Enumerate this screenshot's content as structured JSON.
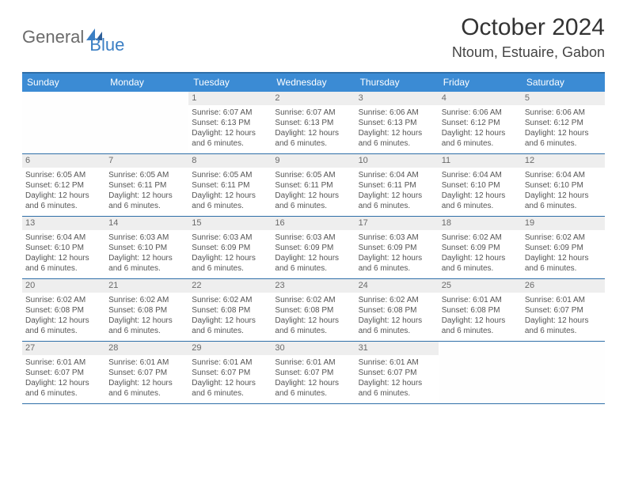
{
  "logo": {
    "text1": "General",
    "text2": "Blue"
  },
  "title": "October 2024",
  "location": "Ntoum, Estuaire, Gabon",
  "colors": {
    "header_bar": "#3b8bd4",
    "border": "#2f6fa8",
    "daynum_bg": "#eeeeee",
    "logo_gray": "#6b6b6b",
    "logo_blue": "#3b7fc4"
  },
  "day_names": [
    "Sunday",
    "Monday",
    "Tuesday",
    "Wednesday",
    "Thursday",
    "Friday",
    "Saturday"
  ],
  "weeks": [
    [
      null,
      null,
      {
        "n": "1",
        "sr": "6:07 AM",
        "ss": "6:13 PM",
        "dl": "12 hours and 6 minutes."
      },
      {
        "n": "2",
        "sr": "6:07 AM",
        "ss": "6:13 PM",
        "dl": "12 hours and 6 minutes."
      },
      {
        "n": "3",
        "sr": "6:06 AM",
        "ss": "6:13 PM",
        "dl": "12 hours and 6 minutes."
      },
      {
        "n": "4",
        "sr": "6:06 AM",
        "ss": "6:12 PM",
        "dl": "12 hours and 6 minutes."
      },
      {
        "n": "5",
        "sr": "6:06 AM",
        "ss": "6:12 PM",
        "dl": "12 hours and 6 minutes."
      }
    ],
    [
      {
        "n": "6",
        "sr": "6:05 AM",
        "ss": "6:12 PM",
        "dl": "12 hours and 6 minutes."
      },
      {
        "n": "7",
        "sr": "6:05 AM",
        "ss": "6:11 PM",
        "dl": "12 hours and 6 minutes."
      },
      {
        "n": "8",
        "sr": "6:05 AM",
        "ss": "6:11 PM",
        "dl": "12 hours and 6 minutes."
      },
      {
        "n": "9",
        "sr": "6:05 AM",
        "ss": "6:11 PM",
        "dl": "12 hours and 6 minutes."
      },
      {
        "n": "10",
        "sr": "6:04 AM",
        "ss": "6:11 PM",
        "dl": "12 hours and 6 minutes."
      },
      {
        "n": "11",
        "sr": "6:04 AM",
        "ss": "6:10 PM",
        "dl": "12 hours and 6 minutes."
      },
      {
        "n": "12",
        "sr": "6:04 AM",
        "ss": "6:10 PM",
        "dl": "12 hours and 6 minutes."
      }
    ],
    [
      {
        "n": "13",
        "sr": "6:04 AM",
        "ss": "6:10 PM",
        "dl": "12 hours and 6 minutes."
      },
      {
        "n": "14",
        "sr": "6:03 AM",
        "ss": "6:10 PM",
        "dl": "12 hours and 6 minutes."
      },
      {
        "n": "15",
        "sr": "6:03 AM",
        "ss": "6:09 PM",
        "dl": "12 hours and 6 minutes."
      },
      {
        "n": "16",
        "sr": "6:03 AM",
        "ss": "6:09 PM",
        "dl": "12 hours and 6 minutes."
      },
      {
        "n": "17",
        "sr": "6:03 AM",
        "ss": "6:09 PM",
        "dl": "12 hours and 6 minutes."
      },
      {
        "n": "18",
        "sr": "6:02 AM",
        "ss": "6:09 PM",
        "dl": "12 hours and 6 minutes."
      },
      {
        "n": "19",
        "sr": "6:02 AM",
        "ss": "6:09 PM",
        "dl": "12 hours and 6 minutes."
      }
    ],
    [
      {
        "n": "20",
        "sr": "6:02 AM",
        "ss": "6:08 PM",
        "dl": "12 hours and 6 minutes."
      },
      {
        "n": "21",
        "sr": "6:02 AM",
        "ss": "6:08 PM",
        "dl": "12 hours and 6 minutes."
      },
      {
        "n": "22",
        "sr": "6:02 AM",
        "ss": "6:08 PM",
        "dl": "12 hours and 6 minutes."
      },
      {
        "n": "23",
        "sr": "6:02 AM",
        "ss": "6:08 PM",
        "dl": "12 hours and 6 minutes."
      },
      {
        "n": "24",
        "sr": "6:02 AM",
        "ss": "6:08 PM",
        "dl": "12 hours and 6 minutes."
      },
      {
        "n": "25",
        "sr": "6:01 AM",
        "ss": "6:08 PM",
        "dl": "12 hours and 6 minutes."
      },
      {
        "n": "26",
        "sr": "6:01 AM",
        "ss": "6:07 PM",
        "dl": "12 hours and 6 minutes."
      }
    ],
    [
      {
        "n": "27",
        "sr": "6:01 AM",
        "ss": "6:07 PM",
        "dl": "12 hours and 6 minutes."
      },
      {
        "n": "28",
        "sr": "6:01 AM",
        "ss": "6:07 PM",
        "dl": "12 hours and 6 minutes."
      },
      {
        "n": "29",
        "sr": "6:01 AM",
        "ss": "6:07 PM",
        "dl": "12 hours and 6 minutes."
      },
      {
        "n": "30",
        "sr": "6:01 AM",
        "ss": "6:07 PM",
        "dl": "12 hours and 6 minutes."
      },
      {
        "n": "31",
        "sr": "6:01 AM",
        "ss": "6:07 PM",
        "dl": "12 hours and 6 minutes."
      },
      null,
      null
    ]
  ],
  "labels": {
    "sunrise": "Sunrise:",
    "sunset": "Sunset:",
    "daylight": "Daylight:"
  }
}
